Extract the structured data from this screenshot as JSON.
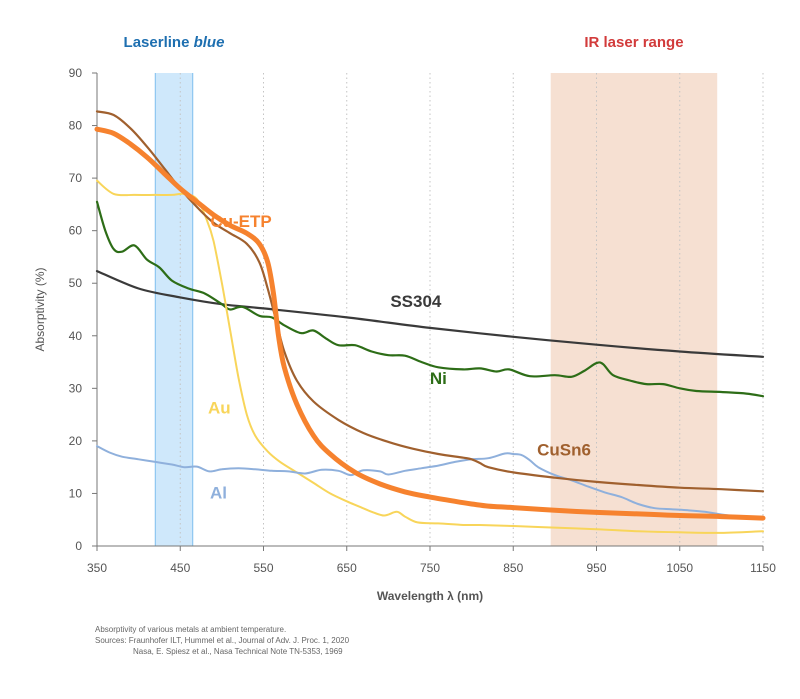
{
  "chart_data": {
    "type": "line",
    "xlabel": "Wavelength λ (nm)",
    "ylabel": "Absorptivity (%)",
    "xlim": [
      350,
      1150
    ],
    "ylim": [
      0,
      90
    ],
    "xticks": [
      350,
      450,
      550,
      650,
      750,
      850,
      950,
      1050,
      1150
    ],
    "yticks": [
      0,
      10,
      20,
      30,
      40,
      50,
      60,
      70,
      80,
      90
    ],
    "grid": "vertical dotted",
    "bands": [
      {
        "label_parts": [
          "Laserline ",
          "blue"
        ],
        "x": [
          420,
          465
        ],
        "color": "#cfe8fb",
        "label_color": "#1e6fb0"
      },
      {
        "label_parts": [
          "IR laser range"
        ],
        "x": [
          895,
          1095
        ],
        "color": "#f6e0d2",
        "label_color": "#d23b3b"
      }
    ],
    "series": [
      {
        "name": "SS304",
        "color": "#3a3a3a",
        "width": 2.2,
        "points": [
          [
            350,
            52.3
          ],
          [
            400,
            49.0
          ],
          [
            450,
            47.3
          ],
          [
            500,
            46.0
          ],
          [
            550,
            45.2
          ],
          [
            650,
            43.5
          ],
          [
            750,
            41.5
          ],
          [
            850,
            39.8
          ],
          [
            950,
            38.3
          ],
          [
            1050,
            37.0
          ],
          [
            1150,
            36.0
          ]
        ]
      },
      {
        "name": "Ni",
        "color": "#2d6d17",
        "width": 2.2,
        "points": [
          [
            350,
            65.5
          ],
          [
            360,
            60
          ],
          [
            370,
            56.5
          ],
          [
            380,
            56
          ],
          [
            395,
            57.2
          ],
          [
            410,
            54.5
          ],
          [
            425,
            53
          ],
          [
            440,
            50.5
          ],
          [
            460,
            49
          ],
          [
            480,
            48
          ],
          [
            500,
            46
          ],
          [
            510,
            45
          ],
          [
            525,
            45.5
          ],
          [
            545,
            43.8
          ],
          [
            560,
            43.5
          ],
          [
            575,
            42
          ],
          [
            595,
            40.5
          ],
          [
            610,
            41
          ],
          [
            625,
            39.5
          ],
          [
            640,
            38.2
          ],
          [
            660,
            38.2
          ],
          [
            680,
            37
          ],
          [
            700,
            36.3
          ],
          [
            720,
            36.2
          ],
          [
            740,
            35
          ],
          [
            760,
            34
          ],
          [
            790,
            33.6
          ],
          [
            810,
            33.8
          ],
          [
            830,
            33.2
          ],
          [
            845,
            33.6
          ],
          [
            870,
            32.3
          ],
          [
            900,
            32.5
          ],
          [
            920,
            32.2
          ],
          [
            935,
            33.3
          ],
          [
            950,
            34.8
          ],
          [
            958,
            34.6
          ],
          [
            970,
            32.5
          ],
          [
            990,
            31.5
          ],
          [
            1010,
            30.8
          ],
          [
            1030,
            30.8
          ],
          [
            1050,
            30
          ],
          [
            1070,
            29.5
          ],
          [
            1100,
            29.3
          ],
          [
            1130,
            29
          ],
          [
            1150,
            28.5
          ]
        ]
      },
      {
        "name": "Au",
        "color": "#f8d55a",
        "width": 2.0,
        "points": [
          [
            350,
            69.5
          ],
          [
            370,
            67
          ],
          [
            395,
            66.8
          ],
          [
            420,
            66.8
          ],
          [
            440,
            66.8
          ],
          [
            455,
            67
          ],
          [
            470,
            66
          ],
          [
            482,
            62
          ],
          [
            490,
            58
          ],
          [
            500,
            50
          ],
          [
            510,
            41
          ],
          [
            520,
            32
          ],
          [
            530,
            25
          ],
          [
            540,
            21
          ],
          [
            555,
            18
          ],
          [
            570,
            16
          ],
          [
            590,
            14
          ],
          [
            610,
            12
          ],
          [
            630,
            10
          ],
          [
            650,
            8.5
          ],
          [
            665,
            7.5
          ],
          [
            680,
            6.5
          ],
          [
            695,
            5.8
          ],
          [
            710,
            6.5
          ],
          [
            720,
            5.6
          ],
          [
            735,
            4.5
          ],
          [
            760,
            4.3
          ],
          [
            790,
            4.0
          ],
          [
            810,
            4.0
          ],
          [
            850,
            3.8
          ],
          [
            900,
            3.5
          ],
          [
            950,
            3.2
          ],
          [
            1000,
            2.8
          ],
          [
            1050,
            2.6
          ],
          [
            1100,
            2.5
          ],
          [
            1150,
            2.8
          ]
        ]
      },
      {
        "name": "Al",
        "color": "#8fb0dc",
        "width": 2.0,
        "points": [
          [
            350,
            19
          ],
          [
            365,
            17.8
          ],
          [
            380,
            17
          ],
          [
            400,
            16.5
          ],
          [
            420,
            16
          ],
          [
            440,
            15.5
          ],
          [
            455,
            15
          ],
          [
            470,
            15.1
          ],
          [
            485,
            14.2
          ],
          [
            500,
            14.6
          ],
          [
            520,
            14.8
          ],
          [
            540,
            14.6
          ],
          [
            560,
            14.3
          ],
          [
            580,
            14.2
          ],
          [
            600,
            13.8
          ],
          [
            620,
            14.5
          ],
          [
            640,
            14.3
          ],
          [
            655,
            13.5
          ],
          [
            670,
            14.4
          ],
          [
            690,
            14.2
          ],
          [
            700,
            13.6
          ],
          [
            720,
            14.3
          ],
          [
            740,
            14.8
          ],
          [
            760,
            15.3
          ],
          [
            780,
            16.0
          ],
          [
            800,
            16.5
          ],
          [
            820,
            16.7
          ],
          [
            840,
            17.6
          ],
          [
            850,
            17.5
          ],
          [
            860,
            17.3
          ],
          [
            870,
            16.3
          ],
          [
            880,
            15.0
          ],
          [
            900,
            13.5
          ],
          [
            920,
            12.5
          ],
          [
            940,
            11.3
          ],
          [
            960,
            10.2
          ],
          [
            980,
            9.3
          ],
          [
            1000,
            8.0
          ],
          [
            1020,
            7.2
          ],
          [
            1040,
            7.0
          ],
          [
            1060,
            6.8
          ],
          [
            1080,
            6.5
          ],
          [
            1100,
            6.0
          ],
          [
            1120,
            5.6
          ],
          [
            1140,
            5.3
          ],
          [
            1150,
            5.2
          ]
        ]
      },
      {
        "name": "CuSn6",
        "color": "#a0602e",
        "width": 2.2,
        "points": [
          [
            350,
            82.7
          ],
          [
            370,
            82
          ],
          [
            390,
            79.5
          ],
          [
            410,
            76
          ],
          [
            430,
            72
          ],
          [
            450,
            68
          ],
          [
            470,
            64.5
          ],
          [
            490,
            61.5
          ],
          [
            510,
            59.5
          ],
          [
            530,
            57.5
          ],
          [
            545,
            54
          ],
          [
            555,
            49
          ],
          [
            565,
            43
          ],
          [
            575,
            37
          ],
          [
            590,
            31.5
          ],
          [
            610,
            27.5
          ],
          [
            640,
            24
          ],
          [
            670,
            21.5
          ],
          [
            700,
            19.8
          ],
          [
            730,
            18.5
          ],
          [
            760,
            17.5
          ],
          [
            790,
            16.8
          ],
          [
            800,
            16.5
          ],
          [
            810,
            15.8
          ],
          [
            820,
            15
          ],
          [
            850,
            14
          ],
          [
            900,
            13
          ],
          [
            950,
            12.2
          ],
          [
            1000,
            11.6
          ],
          [
            1050,
            11.1
          ],
          [
            1100,
            10.8
          ],
          [
            1150,
            10.4
          ]
        ]
      },
      {
        "name": "Cu-ETP",
        "color": "#f6822e",
        "width": 5.0,
        "points": [
          [
            350,
            79.3
          ],
          [
            370,
            78.5
          ],
          [
            390,
            76.5
          ],
          [
            410,
            74
          ],
          [
            430,
            71
          ],
          [
            450,
            68
          ],
          [
            470,
            65.5
          ],
          [
            490,
            63
          ],
          [
            510,
            61
          ],
          [
            530,
            59.5
          ],
          [
            545,
            57.5
          ],
          [
            555,
            54
          ],
          [
            562,
            48
          ],
          [
            568,
            40
          ],
          [
            575,
            34
          ],
          [
            590,
            27
          ],
          [
            610,
            21
          ],
          [
            630,
            17.5
          ],
          [
            660,
            14
          ],
          [
            690,
            11.8
          ],
          [
            720,
            10.3
          ],
          [
            750,
            9.3
          ],
          [
            780,
            8.5
          ],
          [
            800,
            8.0
          ],
          [
            820,
            7.6
          ],
          [
            850,
            7.3
          ],
          [
            900,
            6.8
          ],
          [
            950,
            6.4
          ],
          [
            1000,
            6.1
          ],
          [
            1050,
            5.8
          ],
          [
            1100,
            5.6
          ],
          [
            1150,
            5.3
          ]
        ]
      }
    ],
    "series_labels": [
      {
        "series": "Cu-ETP",
        "text": "Cu-ETP",
        "x": 523,
        "y": 60.7
      },
      {
        "series": "SS304",
        "text": "SS304",
        "x": 733,
        "y": 45.5
      },
      {
        "series": "Ni",
        "text": "Ni",
        "x": 760,
        "y": 30.8
      },
      {
        "series": "Au",
        "text": "Au",
        "x": 497,
        "y": 25.2
      },
      {
        "series": "CuSn6",
        "text": "CuSn6",
        "x": 911,
        "y": 17.2
      },
      {
        "series": "Al",
        "text": "Al",
        "x": 496,
        "y": 9.0
      }
    ]
  },
  "caption": {
    "line1": "Absorptivity of various metals at ambient temperature.",
    "line2": "Sources: Fraunhofer ILT, Hummel et al., Journal of Adv. J. Proc. 1, 2020",
    "line3": "Nasa, E. Spiesz et al., Nasa Technical Note TN-5353, 1969"
  }
}
